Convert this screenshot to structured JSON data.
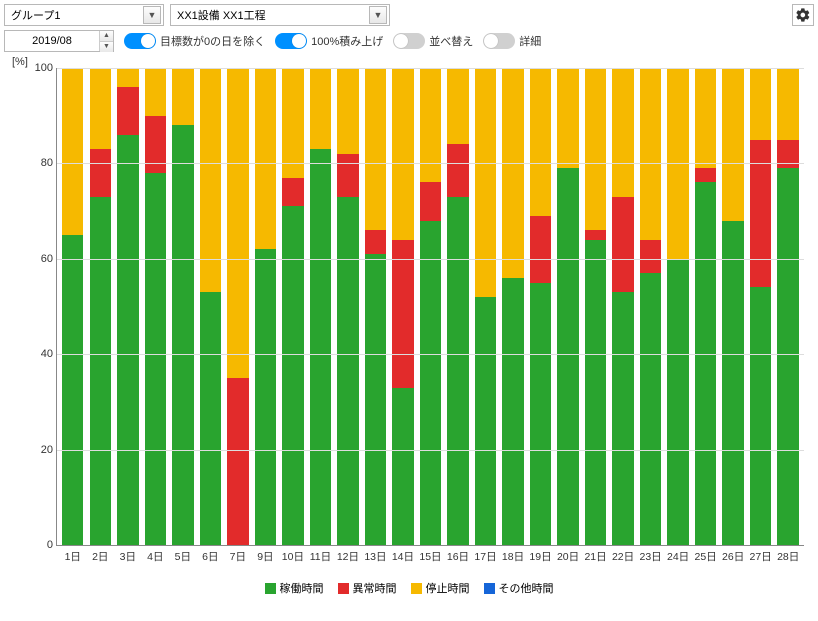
{
  "controls": {
    "group_select": "グループ1",
    "equipment_select": "XX1設備 XX1工程",
    "date": "2019/08",
    "toggles": {
      "exclude_zero_target": {
        "label": "目標数が0の日を除く",
        "on": true
      },
      "stack_100": {
        "label": "100%積み上げ",
        "on": true
      },
      "reorder": {
        "label": "並べ替え",
        "on": false
      },
      "detail": {
        "label": "詳細",
        "on": false
      }
    }
  },
  "chart": {
    "type": "stacked-bar-100",
    "y_unit": "[%]",
    "ylim": [
      0,
      100
    ],
    "ytick_step": 20,
    "background": "#ffffff",
    "grid_color": "#dddddd",
    "axis_color": "#888888",
    "label_fontsize": 11,
    "bar_width_ratio": 0.78,
    "series": [
      {
        "key": "operating",
        "label": "稼働時間",
        "color": "#29a42f"
      },
      {
        "key": "abnormal",
        "label": "異常時間",
        "color": "#e22b2b"
      },
      {
        "key": "stopped",
        "label": "停止時間",
        "color": "#f6b900"
      },
      {
        "key": "other",
        "label": "その他時間",
        "color": "#1565d8"
      }
    ],
    "categories": [
      "1日",
      "2日",
      "3日",
      "4日",
      "5日",
      "6日",
      "7日",
      "9日",
      "10日",
      "11日",
      "12日",
      "13日",
      "14日",
      "15日",
      "16日",
      "17日",
      "18日",
      "19日",
      "20日",
      "21日",
      "22日",
      "23日",
      "24日",
      "25日",
      "26日",
      "27日",
      "28日"
    ],
    "data": [
      {
        "operating": 65,
        "abnormal": 0,
        "stopped": 35,
        "other": 0
      },
      {
        "operating": 73,
        "abnormal": 10,
        "stopped": 17,
        "other": 0
      },
      {
        "operating": 86,
        "abnormal": 10,
        "stopped": 4,
        "other": 0
      },
      {
        "operating": 78,
        "abnormal": 12,
        "stopped": 10,
        "other": 0
      },
      {
        "operating": 88,
        "abnormal": 0,
        "stopped": 12,
        "other": 0
      },
      {
        "operating": 53,
        "abnormal": 0,
        "stopped": 47,
        "other": 0
      },
      {
        "operating": 0,
        "abnormal": 35,
        "stopped": 65,
        "other": 0
      },
      {
        "operating": 62,
        "abnormal": 0,
        "stopped": 38,
        "other": 0
      },
      {
        "operating": 71,
        "abnormal": 6,
        "stopped": 23,
        "other": 0
      },
      {
        "operating": 83,
        "abnormal": 0,
        "stopped": 17,
        "other": 0
      },
      {
        "operating": 73,
        "abnormal": 9,
        "stopped": 18,
        "other": 0
      },
      {
        "operating": 61,
        "abnormal": 5,
        "stopped": 34,
        "other": 0
      },
      {
        "operating": 33,
        "abnormal": 31,
        "stopped": 36,
        "other": 0
      },
      {
        "operating": 68,
        "abnormal": 8,
        "stopped": 24,
        "other": 0
      },
      {
        "operating": 73,
        "abnormal": 11,
        "stopped": 16,
        "other": 0
      },
      {
        "operating": 52,
        "abnormal": 0,
        "stopped": 48,
        "other": 0
      },
      {
        "operating": 56,
        "abnormal": 0,
        "stopped": 44,
        "other": 0
      },
      {
        "operating": 55,
        "abnormal": 14,
        "stopped": 31,
        "other": 0
      },
      {
        "operating": 79,
        "abnormal": 0,
        "stopped": 21,
        "other": 0
      },
      {
        "operating": 64,
        "abnormal": 2,
        "stopped": 34,
        "other": 0
      },
      {
        "operating": 53,
        "abnormal": 20,
        "stopped": 27,
        "other": 0
      },
      {
        "operating": 57,
        "abnormal": 7,
        "stopped": 36,
        "other": 0
      },
      {
        "operating": 60,
        "abnormal": 0,
        "stopped": 40,
        "other": 0
      },
      {
        "operating": 76,
        "abnormal": 3,
        "stopped": 21,
        "other": 0
      },
      {
        "operating": 68,
        "abnormal": 0,
        "stopped": 32,
        "other": 0
      },
      {
        "operating": 54,
        "abnormal": 31,
        "stopped": 15,
        "other": 0
      },
      {
        "operating": 79,
        "abnormal": 6,
        "stopped": 15,
        "other": 0
      }
    ]
  }
}
